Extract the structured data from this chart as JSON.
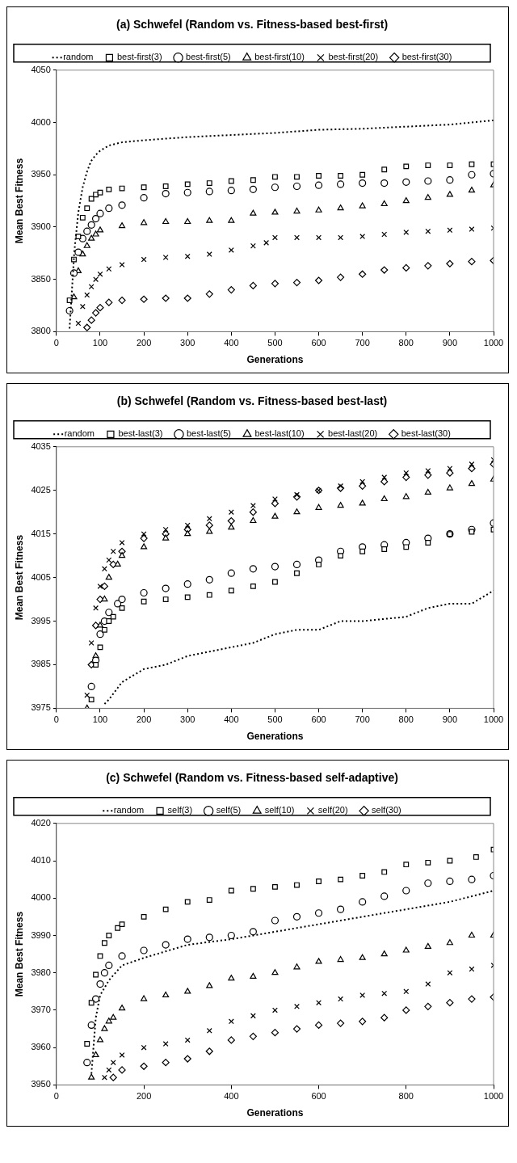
{
  "chart_data": [
    {
      "type": "scatter",
      "title": "(a) Schwefel (Random vs. Fitness-based best-first)",
      "xlabel": "Generations",
      "ylabel": "Mean Best Fitness",
      "xlim": [
        0,
        1000
      ],
      "xticks": [
        0,
        100,
        200,
        300,
        400,
        500,
        600,
        700,
        800,
        900,
        1000
      ],
      "ylim": [
        3800,
        4050
      ],
      "yticks": [
        3800,
        3850,
        3900,
        3950,
        4000,
        4050
      ],
      "grid": false,
      "legend": "top",
      "series": [
        {
          "name": "random",
          "type": "line",
          "line_style": "dotted",
          "marker": "none",
          "color": "#000000",
          "x": [
            30,
            41,
            50,
            60,
            70,
            79,
            90,
            100,
            120,
            150,
            200,
            300,
            400,
            500,
            600,
            700,
            800,
            900,
            1000
          ],
          "values": [
            3803,
            3877,
            3914,
            3938,
            3953,
            3963,
            3969,
            3973,
            3978,
            3981,
            3983,
            3986,
            3988,
            3990,
            3993,
            3994,
            3996,
            3998,
            4002
          ]
        },
        {
          "name": "best-first(3)",
          "marker": "square",
          "color": "#000000",
          "x": [
            30,
            40,
            50,
            60,
            70,
            80,
            90,
            100,
            120,
            150,
            200,
            250,
            300,
            350,
            400,
            450,
            500,
            550,
            600,
            650,
            700,
            750,
            800,
            850,
            900,
            950,
            1000
          ],
          "values": [
            3830,
            3869,
            3891,
            3909,
            3918,
            3927,
            3931,
            3933,
            3936,
            3937,
            3938,
            3939,
            3941,
            3942,
            3944,
            3945,
            3948,
            3948,
            3949,
            3949,
            3950,
            3955,
            3958,
            3959,
            3959,
            3960,
            3960
          ]
        },
        {
          "name": "best-first(5)",
          "marker": "circle",
          "color": "#000000",
          "x": [
            30,
            40,
            50,
            60,
            70,
            80,
            90,
            100,
            120,
            150,
            200,
            250,
            300,
            350,
            400,
            450,
            500,
            550,
            600,
            650,
            700,
            750,
            800,
            850,
            900,
            950,
            1000
          ],
          "values": [
            3820,
            3856,
            3876,
            3889,
            3896,
            3902,
            3908,
            3913,
            3918,
            3921,
            3928,
            3932,
            3933,
            3934,
            3935,
            3936,
            3938,
            3939,
            3940,
            3941,
            3942,
            3942,
            3943,
            3944,
            3945,
            3950,
            3951
          ]
        },
        {
          "name": "best-first(10)",
          "marker": "triangle",
          "color": "#000000",
          "x": [
            40,
            50,
            60,
            70,
            80,
            90,
            100,
            150,
            200,
            250,
            300,
            350,
            400,
            450,
            500,
            550,
            600,
            650,
            700,
            750,
            800,
            850,
            900,
            950,
            1000
          ],
          "values": [
            3833,
            3858,
            3874,
            3882,
            3889,
            3893,
            3897,
            3901,
            3904,
            3905,
            3905,
            3906,
            3906,
            3913,
            3914,
            3915,
            3916,
            3918,
            3920,
            3922,
            3925,
            3928,
            3931,
            3935,
            3940
          ]
        },
        {
          "name": "best-first(20)",
          "marker": "cross",
          "color": "#000000",
          "x": [
            50,
            60,
            70,
            80,
            90,
            100,
            120,
            150,
            200,
            250,
            300,
            350,
            400,
            450,
            480,
            500,
            550,
            600,
            650,
            700,
            750,
            800,
            850,
            900,
            950,
            1000
          ],
          "values": [
            3808,
            3824,
            3835,
            3843,
            3850,
            3855,
            3860,
            3864,
            3869,
            3871,
            3872,
            3874,
            3878,
            3882,
            3885,
            3890,
            3890,
            3890,
            3890,
            3891,
            3893,
            3895,
            3896,
            3897,
            3898,
            3899
          ]
        },
        {
          "name": "best-first(30)",
          "marker": "diamond",
          "color": "#000000",
          "x": [
            70,
            80,
            90,
            100,
            120,
            150,
            200,
            250,
            300,
            350,
            400,
            450,
            500,
            550,
            600,
            650,
            700,
            750,
            800,
            850,
            900,
            950,
            1000
          ],
          "values": [
            3804,
            3811,
            3818,
            3823,
            3828,
            3830,
            3831,
            3832,
            3832,
            3836,
            3840,
            3844,
            3846,
            3847,
            3849,
            3852,
            3855,
            3859,
            3861,
            3863,
            3865,
            3867,
            3868
          ]
        }
      ]
    },
    {
      "type": "scatter",
      "title": "(b) Schwefel (Random vs. Fitness-based best-last)",
      "xlabel": "Generations",
      "ylabel": "Mean Best Fitness",
      "xlim": [
        0,
        1000
      ],
      "xticks": [
        0,
        100,
        200,
        300,
        400,
        500,
        600,
        700,
        800,
        900,
        1000
      ],
      "ylim": [
        3975,
        4035
      ],
      "yticks": [
        3975,
        3985,
        3995,
        4005,
        4015,
        4025,
        4035
      ],
      "grid": false,
      "legend": "top",
      "series": [
        {
          "name": "random",
          "type": "line",
          "line_style": "dotted",
          "marker": "none",
          "color": "#000000",
          "x": [
            110,
            120,
            150,
            200,
            250,
            300,
            400,
            450,
            500,
            550,
            600,
            650,
            700,
            800,
            850,
            900,
            950,
            1000
          ],
          "values": [
            3976,
            3977,
            3981,
            3984,
            3985,
            3987,
            3989,
            3990,
            3992,
            3993,
            3993,
            3995,
            3995,
            3996,
            3998,
            3999,
            3999,
            4002
          ]
        },
        {
          "name": "best-last(3)",
          "marker": "square",
          "color": "#000000",
          "x": [
            80,
            90,
            100,
            110,
            120,
            130,
            150,
            200,
            250,
            300,
            350,
            400,
            450,
            500,
            550,
            600,
            650,
            700,
            750,
            800,
            850,
            900,
            950,
            1000
          ],
          "values": [
            3977,
            3985,
            3989,
            3993,
            3995,
            3996,
            3998,
            3999.5,
            4000,
            4000.5,
            4001,
            4002,
            4003,
            4004,
            4006,
            4008,
            4010,
            4011,
            4011.5,
            4012,
            4013,
            4015,
            4015.5,
            4016
          ]
        },
        {
          "name": "best-last(5)",
          "marker": "circle",
          "color": "#000000",
          "x": [
            80,
            90,
            100,
            110,
            120,
            140,
            150,
            200,
            250,
            300,
            350,
            400,
            450,
            500,
            550,
            600,
            650,
            700,
            750,
            800,
            850,
            900,
            950,
            1000
          ],
          "values": [
            3980,
            3986,
            3992,
            3995,
            3997,
            3999,
            4000,
            4001.5,
            4002.5,
            4003.5,
            4004.5,
            4006,
            4007,
            4007.5,
            4008,
            4009,
            4011,
            4012,
            4012.5,
            4013,
            4014,
            4015,
            4016,
            4017.5
          ]
        },
        {
          "name": "best-last(10)",
          "marker": "triangle",
          "color": "#000000",
          "x": [
            70,
            90,
            100,
            110,
            120,
            140,
            150,
            200,
            250,
            300,
            350,
            400,
            450,
            500,
            550,
            600,
            650,
            700,
            750,
            800,
            850,
            900,
            950,
            1000
          ],
          "values": [
            3975,
            3987,
            3994,
            4000,
            4005,
            4008,
            4010,
            4012,
            4014,
            4015,
            4015.5,
            4016.5,
            4018,
            4019,
            4020,
            4021,
            4021.5,
            4022,
            4023,
            4023.5,
            4024.5,
            4025.5,
            4026.5,
            4027.5
          ]
        },
        {
          "name": "best-last(20)",
          "marker": "cross",
          "color": "#000000",
          "x": [
            70,
            80,
            90,
            100,
            110,
            120,
            130,
            150,
            200,
            250,
            300,
            350,
            400,
            450,
            500,
            550,
            600,
            650,
            700,
            750,
            800,
            850,
            900,
            950,
            1000
          ],
          "values": [
            3978,
            3990,
            3998,
            4003,
            4007,
            4009,
            4011,
            4013,
            4015,
            4016,
            4017,
            4018.5,
            4020,
            4021.5,
            4023,
            4024,
            4025,
            4026,
            4027,
            4028,
            4029,
            4029.5,
            4030,
            4031,
            4032
          ]
        },
        {
          "name": "best-last(30)",
          "marker": "diamond",
          "color": "#000000",
          "x": [
            80,
            90,
            100,
            110,
            130,
            150,
            200,
            250,
            300,
            350,
            400,
            450,
            500,
            550,
            600,
            650,
            700,
            750,
            800,
            850,
            900,
            950,
            1000
          ],
          "values": [
            3985,
            3994,
            4000,
            4003,
            4008,
            4011,
            4014,
            4015,
            4016,
            4017,
            4018,
            4020,
            4022,
            4023.5,
            4025,
            4025.5,
            4026,
            4027,
            4028,
            4028.5,
            4029,
            4030,
            4031
          ]
        }
      ]
    },
    {
      "type": "scatter",
      "title": "(c) Schwefel (Random vs. Fitness-based self-adaptive)",
      "xlabel": "Generations",
      "ylabel": "Mean Best Fitness",
      "xlim": [
        0,
        1000
      ],
      "xticks": [
        0,
        200,
        400,
        600,
        800,
        1000
      ],
      "ylim": [
        3950,
        4020
      ],
      "yticks": [
        3950,
        3960,
        3970,
        3980,
        3990,
        4000,
        4010,
        4020
      ],
      "grid": false,
      "legend": "top",
      "series": [
        {
          "name": "random",
          "type": "line",
          "line_style": "dotted",
          "marker": "none",
          "color": "#000000",
          "x": [
            80,
            90,
            100,
            120,
            150,
            200,
            300,
            400,
            500,
            600,
            700,
            800,
            900,
            1000
          ],
          "values": [
            3953,
            3968,
            3974,
            3978,
            3982,
            3984,
            3987.5,
            3989,
            3991,
            3993,
            3995,
            3997,
            3999,
            4002
          ]
        },
        {
          "name": "self(3)",
          "marker": "square",
          "color": "#000000",
          "x": [
            70,
            80,
            90,
            100,
            110,
            120,
            140,
            150,
            200,
            250,
            300,
            350,
            400,
            450,
            500,
            550,
            600,
            650,
            700,
            750,
            800,
            850,
            900,
            960,
            1000
          ],
          "values": [
            3961,
            3972,
            3979.5,
            3984.5,
            3988,
            3990,
            3992,
            3993,
            3995,
            3997,
            3999,
            3999.5,
            4002,
            4002.5,
            4003,
            4003.5,
            4004.5,
            4005,
            4006,
            4007,
            4009,
            4009.5,
            4010,
            4011,
            4013
          ]
        },
        {
          "name": "self(5)",
          "marker": "circle",
          "color": "#000000",
          "x": [
            70,
            80,
            90,
            100,
            110,
            120,
            150,
            200,
            250,
            300,
            350,
            400,
            450,
            500,
            550,
            600,
            650,
            700,
            750,
            800,
            850,
            900,
            950,
            1000
          ],
          "values": [
            3956,
            3966,
            3973,
            3977,
            3980,
            3982,
            3984.5,
            3986,
            3987.5,
            3989,
            3989.5,
            3990,
            3991,
            3994,
            3995,
            3996,
            3997,
            3999,
            4000.5,
            4002,
            4004,
            4004.5,
            4005,
            4006
          ]
        },
        {
          "name": "self(10)",
          "marker": "triangle",
          "color": "#000000",
          "x": [
            80,
            90,
            100,
            110,
            120,
            130,
            150,
            200,
            250,
            300,
            350,
            400,
            450,
            500,
            550,
            600,
            650,
            700,
            750,
            800,
            850,
            900,
            950,
            1000
          ],
          "values": [
            3952,
            3958,
            3962,
            3965,
            3967,
            3968,
            3970.5,
            3973,
            3974,
            3975,
            3976.5,
            3978.5,
            3979,
            3980,
            3981.5,
            3983,
            3983.5,
            3984,
            3985,
            3986,
            3987,
            3988,
            3990,
            3990
          ]
        },
        {
          "name": "self(20)",
          "marker": "cross",
          "color": "#000000",
          "x": [
            110,
            120,
            130,
            150,
            200,
            250,
            300,
            350,
            400,
            450,
            500,
            550,
            600,
            650,
            700,
            750,
            800,
            850,
            900,
            950,
            1000
          ],
          "values": [
            3952,
            3954,
            3956,
            3958,
            3960,
            3961,
            3962,
            3964.5,
            3967,
            3968.5,
            3970,
            3971,
            3972,
            3973,
            3974,
            3974.5,
            3975,
            3977,
            3980,
            3981,
            3982
          ]
        },
        {
          "name": "self(30)",
          "marker": "diamond",
          "color": "#000000",
          "x": [
            130,
            150,
            200,
            250,
            300,
            350,
            400,
            450,
            500,
            550,
            600,
            650,
            700,
            750,
            800,
            850,
            900,
            950,
            1000
          ],
          "values": [
            3952,
            3954,
            3955,
            3956,
            3957,
            3959,
            3962,
            3963,
            3964,
            3965,
            3966,
            3966.5,
            3967,
            3968,
            3970,
            3971,
            3972,
            3973,
            3973.5
          ]
        }
      ]
    }
  ]
}
